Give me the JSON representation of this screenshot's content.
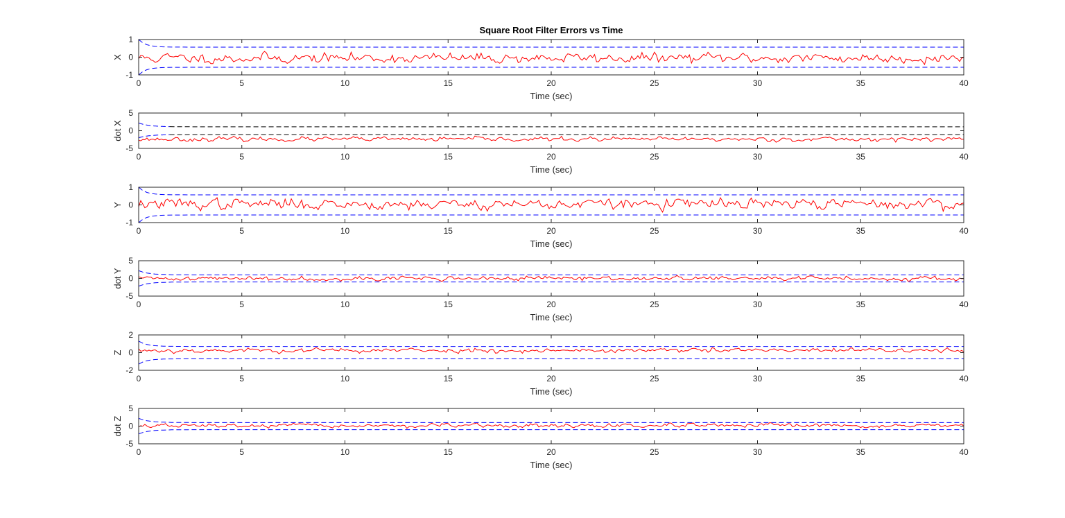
{
  "figure": {
    "title": "Square Root Filter Errors vs Time"
  },
  "colors": {
    "error": "#ff0000",
    "bound": "#0000ff",
    "bound_alt": "#000000",
    "axes": "#262626"
  },
  "chart_data": [
    {
      "type": "line",
      "ylabel": "X",
      "xlabel": "Time (sec)",
      "xlim": [
        0,
        40
      ],
      "ylim": [
        -1,
        1
      ],
      "xticks": [
        0,
        5,
        10,
        15,
        20,
        25,
        30,
        35,
        40
      ],
      "yticks": [
        -1,
        0,
        1
      ],
      "series": [
        {
          "role": "error",
          "color": "#ff0000",
          "style": "solid",
          "mean": -0.05,
          "noise": 0.13,
          "seed": 11
        },
        {
          "role": "upper-bound",
          "color": "#0000ff",
          "style": "dashed",
          "start": 1.0,
          "steady": 0.57,
          "tau": 0.35
        },
        {
          "role": "lower-bound",
          "color": "#0000ff",
          "style": "dashed",
          "start": -1.0,
          "steady": -0.57,
          "tau": 0.35
        }
      ]
    },
    {
      "type": "line",
      "ylabel": "dot X",
      "xlabel": "Time (sec)",
      "xlim": [
        0,
        40
      ],
      "ylim": [
        -5,
        5
      ],
      "xticks": [
        0,
        5,
        10,
        15,
        20,
        25,
        30,
        35,
        40
      ],
      "yticks": [
        -5,
        0,
        5
      ],
      "series": [
        {
          "role": "error",
          "color": "#ff0000",
          "style": "solid",
          "mean": -2.4,
          "noise": 0.28,
          "seed": 23
        },
        {
          "role": "upper-bound",
          "color": "#0000ff",
          "style": "dashed",
          "start": 2.2,
          "steady": 1.1,
          "tau": 0.5,
          "late_color": "#000000",
          "late_after": 1.5
        },
        {
          "role": "lower-bound",
          "color": "#0000ff",
          "style": "dashed",
          "start": -2.0,
          "steady": -1.1,
          "tau": 0.5,
          "late_color": "#000000",
          "late_after": 1.5
        }
      ]
    },
    {
      "type": "line",
      "ylabel": "Y",
      "xlabel": "Time (sec)",
      "xlim": [
        0,
        40
      ],
      "ylim": [
        -1,
        1
      ],
      "xticks": [
        0,
        5,
        10,
        15,
        20,
        25,
        30,
        35,
        40
      ],
      "yticks": [
        -1,
        0,
        1
      ],
      "series": [
        {
          "role": "error",
          "color": "#ff0000",
          "style": "solid",
          "mean": 0.05,
          "noise": 0.14,
          "seed": 37
        },
        {
          "role": "upper-bound",
          "color": "#0000ff",
          "style": "dashed",
          "start": 1.0,
          "steady": 0.57,
          "tau": 0.35
        },
        {
          "role": "lower-bound",
          "color": "#0000ff",
          "style": "dashed",
          "start": -1.0,
          "steady": -0.57,
          "tau": 0.35
        }
      ]
    },
    {
      "type": "line",
      "ylabel": "dot Y",
      "xlabel": "Time (sec)",
      "xlim": [
        0,
        40
      ],
      "ylim": [
        -5,
        5
      ],
      "xticks": [
        0,
        5,
        10,
        15,
        20,
        25,
        30,
        35,
        40
      ],
      "yticks": [
        -5,
        0,
        5
      ],
      "series": [
        {
          "role": "error",
          "color": "#ff0000",
          "style": "solid",
          "mean": 0.0,
          "noise": 0.28,
          "seed": 41
        },
        {
          "role": "upper-bound",
          "color": "#0000ff",
          "style": "dashed",
          "start": 2.2,
          "steady": 1.0,
          "tau": 0.5
        },
        {
          "role": "lower-bound",
          "color": "#0000ff",
          "style": "dashed",
          "start": -2.2,
          "steady": -1.0,
          "tau": 0.5
        }
      ]
    },
    {
      "type": "line",
      "ylabel": "Z",
      "xlabel": "Time (sec)",
      "xlim": [
        0,
        40
      ],
      "ylim": [
        -2,
        2
      ],
      "xticks": [
        0,
        5,
        10,
        15,
        20,
        25,
        30,
        35,
        40
      ],
      "yticks": [
        -2,
        0,
        2
      ],
      "series": [
        {
          "role": "error",
          "color": "#ff0000",
          "style": "solid",
          "mean": 0.25,
          "noise": 0.12,
          "seed": 53
        },
        {
          "role": "upper-bound",
          "color": "#0000ff",
          "style": "dashed",
          "start": 1.3,
          "steady": 0.7,
          "tau": 0.4
        },
        {
          "role": "lower-bound",
          "color": "#0000ff",
          "style": "dashed",
          "start": -1.3,
          "steady": -0.7,
          "tau": 0.4
        }
      ]
    },
    {
      "type": "line",
      "ylabel": "dot Z",
      "xlabel": "Time (sec)",
      "xlim": [
        0,
        40
      ],
      "ylim": [
        -5,
        5
      ],
      "xticks": [
        0,
        5,
        10,
        15,
        20,
        25,
        30,
        35,
        40
      ],
      "yticks": [
        -5,
        0,
        5
      ],
      "series": [
        {
          "role": "error",
          "color": "#ff0000",
          "style": "solid",
          "mean": 0.1,
          "noise": 0.26,
          "seed": 67
        },
        {
          "role": "upper-bound",
          "color": "#0000ff",
          "style": "dashed",
          "start": 2.2,
          "steady": 1.0,
          "tau": 0.5
        },
        {
          "role": "lower-bound",
          "color": "#0000ff",
          "style": "dashed",
          "start": -2.2,
          "steady": -1.0,
          "tau": 0.5
        }
      ]
    }
  ]
}
